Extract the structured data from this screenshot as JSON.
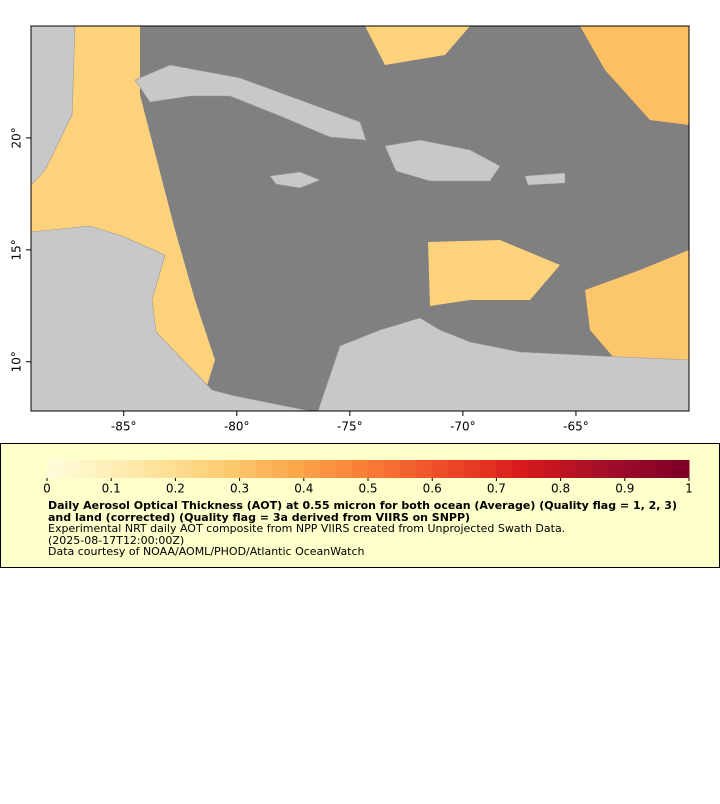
{
  "map": {
    "xlim": [
      -89.1,
      -60
    ],
    "ylim": [
      7.8,
      25
    ],
    "xticks": [
      {
        "value": -85,
        "label": "-85°"
      },
      {
        "value": -80,
        "label": "-80°"
      },
      {
        "value": -75,
        "label": "-75°"
      },
      {
        "value": -70,
        "label": "-70°"
      },
      {
        "value": -65,
        "label": "-65°"
      }
    ],
    "yticks": [
      {
        "value": 10,
        "label": "10°"
      },
      {
        "value": 15,
        "label": "15°"
      },
      {
        "value": 20,
        "label": "20°"
      }
    ]
  },
  "colorbar": {
    "lim": [
      0,
      1
    ],
    "ticks": [
      0,
      0.1,
      0.2,
      0.3,
      0.4,
      0.5,
      0.6,
      0.7,
      0.8,
      0.9,
      1
    ],
    "colors": [
      "#fffbd8",
      "#fee9a8",
      "#fdd17a",
      "#fca94c",
      "#f97c35",
      "#ee4a27",
      "#d7191c",
      "#a50f2a",
      "#800026"
    ]
  },
  "caption": {
    "title": "Daily Aerosol Optical Thickness (AOT) at 0.55 micron for both ocean (Average) (Quality flag = 1, 2, 3) and land (corrected) (Quality flag = 3a derived from VIIRS on SNPP)",
    "lines": [
      "Experimental NRT daily AOT composite from NPP VIIRS created from Unprojected Swath Data.",
      "(2025-08-17T12:00:00Z)",
      "Data courtesy of NOAA/AOML/PHOD/Atlantic OceanWatch"
    ]
  }
}
